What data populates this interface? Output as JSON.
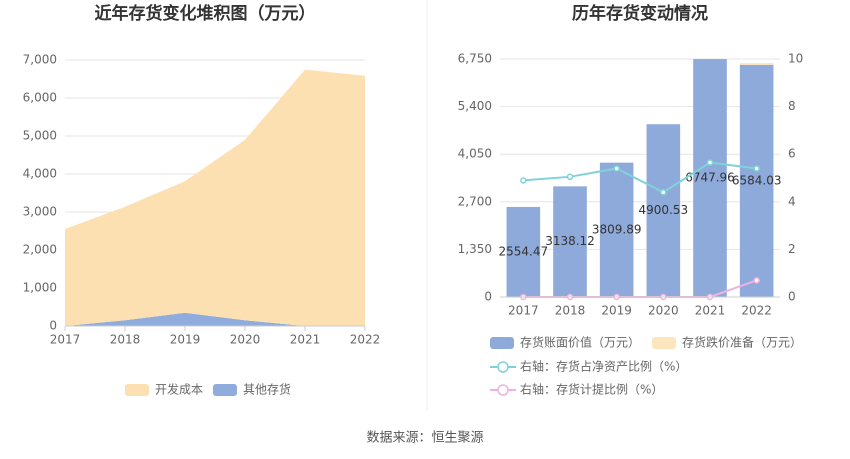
{
  "chart_data": [
    {
      "type": "stacked-area",
      "title": "近年存货变化堆积图（万元）",
      "categories": [
        "2017",
        "2018",
        "2019",
        "2020",
        "2021",
        "2022"
      ],
      "series": [
        {
          "name": "开发成本",
          "color": "#fde0b2",
          "values": [
            2554,
            2988,
            3460,
            4750,
            6748,
            6584
          ]
        },
        {
          "name": "其他存货",
          "color": "#90acdc",
          "values": [
            0,
            150,
            350,
            150,
            0,
            0
          ]
        }
      ],
      "ylim": [
        0,
        7000
      ],
      "yticks": [
        0,
        {
          "value": 1000,
          "label": "1,000"
        },
        {
          "value": 2000,
          "label": "2,000"
        },
        {
          "value": 3000,
          "label": "3,000"
        },
        {
          "value": 4000,
          "label": "4,000"
        },
        {
          "value": 5000,
          "label": "5,000"
        },
        {
          "value": 6000,
          "label": "6,000"
        },
        {
          "value": 7000,
          "label": "7,000"
        }
      ],
      "grid": true
    },
    {
      "type": "bar-line",
      "title": "历年存货变动情况",
      "categories": [
        "2017",
        "2018",
        "2019",
        "2020",
        "2021",
        "2022"
      ],
      "series": [
        {
          "name": "存货账面价值（万元）",
          "color": "#8eaadb",
          "values": [
            2554.47,
            3138.12,
            3809.89,
            4900.53,
            6747.96,
            6584.03
          ]
        },
        {
          "name": "存货跌价准备（万元）",
          "color": "#fde5bd",
          "values": [
            0,
            0,
            0,
            0,
            0,
            50
          ]
        },
        {
          "name": "右轴：存货占净资产比例（%）",
          "color": "#7fd3d8",
          "axis": "y2",
          "values": [
            4.9,
            5.05,
            5.4,
            4.4,
            5.65,
            5.4
          ]
        },
        {
          "name": "右轴：存货计提比例（%）",
          "color": "#efb3df",
          "axis": "y2",
          "values": [
            0,
            0,
            0,
            0,
            0,
            0.7
          ]
        }
      ],
      "ylim": [
        0,
        6750
      ],
      "yticks": [
        0,
        {
          "value": 1350,
          "label": "1,350"
        },
        {
          "value": 2700,
          "label": "2,700"
        },
        {
          "value": 4050,
          "label": "4,050"
        },
        {
          "value": 5400,
          "label": "5,400"
        },
        {
          "value": 6750,
          "label": "6,750"
        }
      ],
      "y2lim": [
        0,
        10
      ],
      "y2ticks": [
        0,
        2,
        4,
        6,
        8,
        10
      ],
      "grid": true
    }
  ],
  "source": "数据来源：恒生聚源"
}
